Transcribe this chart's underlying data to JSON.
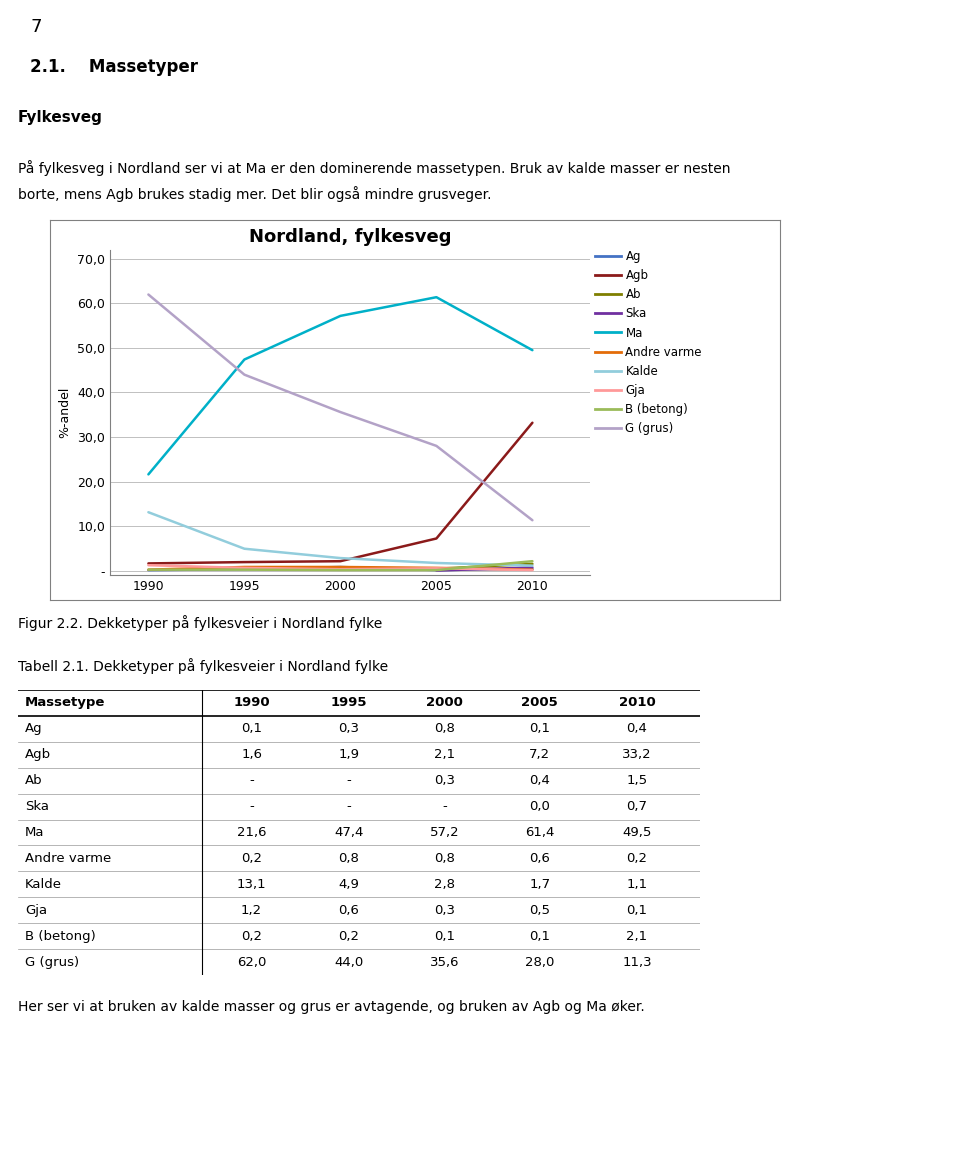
{
  "title": "Nordland, fylkesveg",
  "ylabel": "%-andel",
  "years": [
    1990,
    1995,
    2000,
    2005,
    2010
  ],
  "series": {
    "Ag": [
      0.1,
      0.3,
      0.8,
      0.1,
      0.4
    ],
    "Agb": [
      1.6,
      1.9,
      2.1,
      7.2,
      33.2
    ],
    "Ab": [
      null,
      null,
      0.3,
      0.4,
      1.5
    ],
    "Ska": [
      null,
      null,
      null,
      0.0,
      0.7
    ],
    "Ma": [
      21.6,
      47.4,
      57.2,
      61.4,
      49.5
    ],
    "Andre varme": [
      0.2,
      0.8,
      0.8,
      0.6,
      0.2
    ],
    "Kalde": [
      13.1,
      4.9,
      2.8,
      1.7,
      1.1
    ],
    "Gja": [
      1.2,
      0.6,
      0.3,
      0.5,
      0.1
    ],
    "B (betong)": [
      0.2,
      0.2,
      0.1,
      0.1,
      2.1
    ],
    "G (grus)": [
      62.0,
      44.0,
      35.6,
      28.0,
      11.3
    ]
  },
  "colors": {
    "Ag": "#4472C4",
    "Agb": "#8B1A1A",
    "Ab": "#7F7F00",
    "Ska": "#7030A0",
    "Ma": "#00B0C8",
    "Andre varme": "#E36C09",
    "Kalde": "#92CDDC",
    "Gja": "#FF9999",
    "B (betong)": "#9BBB59",
    "G (grus)": "#B3A2C7"
  },
  "page_number": "7",
  "heading_num": "2.1.",
  "heading_text": "Massetyper",
  "bold_subhead": "Fylkesveg",
  "para1_line1": "På fylkesveg i Nordland ser vi at Ma er den dominerende massetypen. Bruk av kalde masser er nesten",
  "para1_line2": "borte, mens Agb brukes stadig mer. Det blir også mindre grusveger.",
  "figcaption": "Figur 2.2. Dekketyper på fylkesveier i Nordland fylke",
  "table_title": "Tabell 2.1. Dekketyper på fylkesveier i Nordland fylke",
  "table_headers": [
    "Massetype",
    "1990",
    "1995",
    "2000",
    "2005",
    "2010"
  ],
  "table_rows": [
    [
      "Ag",
      "0,1",
      "0,3",
      "0,8",
      "0,1",
      "0,4"
    ],
    [
      "Agb",
      "1,6",
      "1,9",
      "2,1",
      "7,2",
      "33,2"
    ],
    [
      "Ab",
      "-",
      "-",
      "0,3",
      "0,4",
      "1,5"
    ],
    [
      "Ska",
      "-",
      "-",
      "-",
      "0,0",
      "0,7"
    ],
    [
      "Ma",
      "21,6",
      "47,4",
      "57,2",
      "61,4",
      "49,5"
    ],
    [
      "Andre varme",
      "0,2",
      "0,8",
      "0,8",
      "0,6",
      "0,2"
    ],
    [
      "Kalde",
      "13,1",
      "4,9",
      "2,8",
      "1,7",
      "1,1"
    ],
    [
      "Gja",
      "1,2",
      "0,6",
      "0,3",
      "0,5",
      "0,1"
    ],
    [
      "B (betong)",
      "0,2",
      "0,2",
      "0,1",
      "0,1",
      "2,1"
    ],
    [
      "G (grus)",
      "62,0",
      "44,0",
      "35,6",
      "28,0",
      "11,3"
    ]
  ],
  "footer_text": "Her ser vi at bruken av kalde masser og grus er avtagende, og bruken av Agb og Ma øker."
}
